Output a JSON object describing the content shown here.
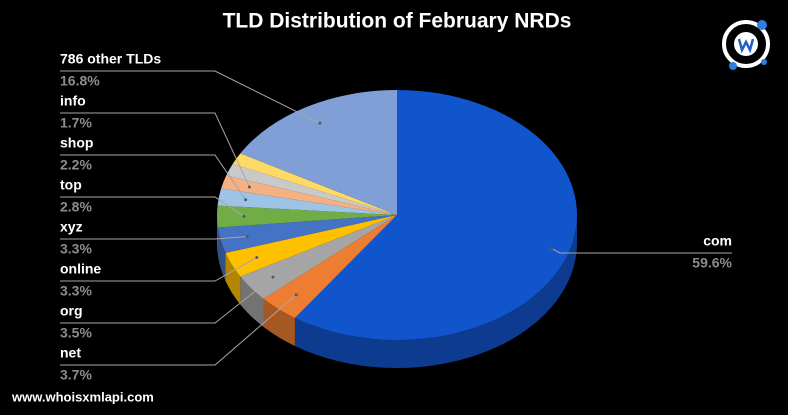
{
  "chart_data": {
    "type": "pie3d",
    "title": "TLD Distribution of February NRDs",
    "categories": [
      "com",
      "net",
      "org",
      "online",
      "xyz",
      "top",
      "shop",
      "info",
      null,
      null,
      "786 other TLDs"
    ],
    "values": [
      59.6,
      3.7,
      3.5,
      3.3,
      3.3,
      2.8,
      2.2,
      1.7,
      1.6,
      1.5,
      16.8
    ],
    "value_labels": [
      "59.6%",
      "3.7%",
      "3.5%",
      "3.3%",
      "3.3%",
      "2.8%",
      "2.2%",
      "1.7%",
      null,
      null,
      "16.8%"
    ],
    "colors": [
      "#1155cc",
      "#ed7d31",
      "#a5a5a5",
      "#ffc000",
      "#4472c4",
      "#70ad47",
      "#9dc3e6",
      "#f4b183",
      "#c9c9c9",
      "#ffd966",
      "#7f9fd6"
    ]
  },
  "source": "www.whoisxmlapi.com"
}
